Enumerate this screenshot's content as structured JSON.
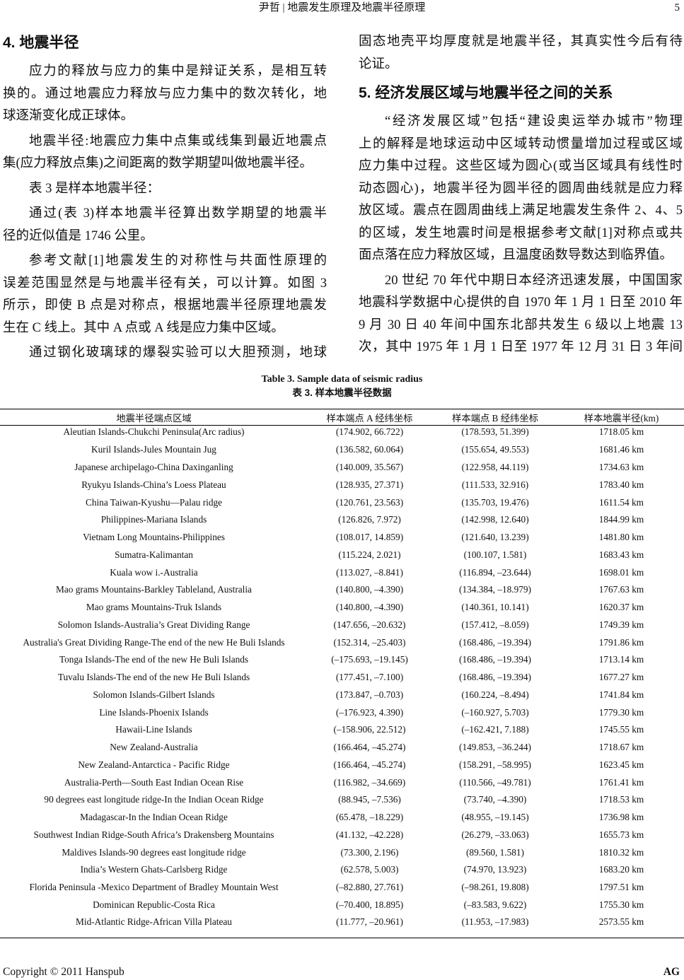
{
  "header": {
    "title": "尹哲 | 地震发生原理及地震半径原理",
    "page_number": "5"
  },
  "left": {
    "heading": "4. 地震半径",
    "paragraphs": [
      {
        "indent": true,
        "lines": [
          "应力的释放与应力的集中是辩证关系，是相互转",
          "换的。通过地震应力释放与应力集中的数次转化，地",
          "球逐渐变化成正球体。"
        ]
      },
      {
        "indent": true,
        "lines": [
          "地震半径:地震应力集中点集或线集到最近地震点",
          "集(应力释放点集)之间距离的数学期望叫做地震半径。"
        ]
      },
      {
        "indent": true,
        "lines": [
          "表 3 是样本地震半径："
        ]
      },
      {
        "indent": true,
        "lines": [
          "通过(表  3)样本地震半径算出数学期望的地震半",
          "径的近似值是 1746 公里。"
        ]
      },
      {
        "indent": true,
        "lines": [
          "参考文献[1]地震发生的对称性与共面性原理的",
          "误差范围显然是与地震半径有关，可以计算。如图 3",
          "所示，即使 B 点是对称点，根据地震半径原理地震发",
          "生在 C 线上。其中 A 点或 A 线是应力集中区域。"
        ]
      },
      {
        "indent": true,
        "continues": true,
        "lines": [
          "通过钢化玻璃球的爆裂实验可以大胆预测，地球"
        ]
      }
    ]
  },
  "right": {
    "lead": {
      "indent": false,
      "lines": [
        "固态地壳平均厚度就是地震半径，其真实性今后有待",
        "论证。"
      ]
    },
    "heading": "5. 经济发展区域与地震半径之间的关系",
    "paragraphs": [
      {
        "indent": true,
        "lines": [
          "“经济发展区域”包括“建设奥运举办城市”物理",
          "上的解释是地球运动中区域转动惯量增加过程或区域",
          "应力集中过程。这些区域为圆心(或当区域具有线性时",
          "动态圆心)，地震半径为圆半径的圆周曲线就是应力释",
          "放区域。震点在圆周曲线上满足地震发生条件 2、4、5",
          "的区域，发生地震时间是根据参考文献[1]对称点或共",
          "面点落在应力释放区域，且温度函数导数达到临界值。"
        ]
      },
      {
        "indent": true,
        "continues": true,
        "lines": [
          "20 世纪 70 年代中期日本经济迅速发展，中国国家",
          "地震科学数据中心提供的自 1970 年 1 月 1 日至 2010 年",
          "9 月 30 日 40 年间中国东北部共发生 6 级以上地震 13",
          "次，其中 1975 年 1 月 1 日至 1977 年 12 月 31 日 3 年间"
        ]
      }
    ]
  },
  "table": {
    "caption_en": "Table 3. Sample data of seismic radius",
    "caption_zh": "表 3.  样本地震半径数据",
    "columns": [
      "地震半径端点区域",
      "样本端点 A 经纬坐标",
      "样本端点 B 经纬坐标",
      "样本地震半径(km)"
    ],
    "rows": [
      [
        "Aleutian Islands-Chukchi Peninsula(Arc radius)",
        "(174.902, 66.722)",
        "(178.593, 51.399)",
        "1718.05 km"
      ],
      [
        "Kuril Islands-Jules Mountain Jug",
        "(136.582, 60.064)",
        "(155.654, 49.553)",
        "1681.46 km"
      ],
      [
        "Japanese archipelago-China Daxinganling",
        "(140.009, 35.567)",
        "(122.958, 44.119)",
        "1734.63 km"
      ],
      [
        "Ryukyu Islands-China’s Loess Plateau",
        "(128.935, 27.371)",
        "(111.533, 32.916)",
        "1783.40 km"
      ],
      [
        "China Taiwan-Kyushu—Palau ridge",
        "(120.761, 23.563)",
        "(135.703, 19.476)",
        "1611.54 km"
      ],
      [
        "Philippines-Mariana Islands",
        "(126.826, 7.972)",
        "(142.998, 12.640)",
        "1844.99 km"
      ],
      [
        "Vietnam Long Mountains-Philippines",
        "(108.017, 14.859)",
        "(121.640, 13.239)",
        "1481.80 km"
      ],
      [
        "Sumatra-Kalimantan",
        "(115.224, 2.021)",
        "(100.107, 1.581)",
        "1683.43 km"
      ],
      [
        "Kuala wow i.-Australia",
        "(113.027, –8.841)",
        "(116.894, –23.644)",
        "1698.01 km"
      ],
      [
        "Mao grams Mountains-Barkley Tableland, Australia",
        "(140.800, –4.390)",
        "(134.384, –18.979)",
        "1767.63 km"
      ],
      [
        "Mao grams Mountains-Truk Islands",
        "(140.800, –4.390)",
        "(140.361, 10.141)",
        "1620.37 km"
      ],
      [
        "Solomon Islands-Australia’s Great Dividing Range",
        "(147.656, –20.632)",
        "(157.412, –8.059)",
        "1749.39 km"
      ],
      [
        "Australia's Great Dividing Range-The end of the new He Buli Islands",
        "(152.314, –25.403)",
        "(168.486, –19.394)",
        "1791.86 km"
      ],
      [
        "Tonga Islands-The end of the new He Buli Islands",
        "(–175.693, –19.145)",
        "(168.486, –19.394)",
        "1713.14 km"
      ],
      [
        "Tuvalu Islands-The end of the new He Buli Islands",
        "(177.451, –7.100)",
        "(168.486, –19.394)",
        "1677.27 km"
      ],
      [
        "Solomon Islands-Gilbert Islands",
        "(173.847, –0.703)",
        "(160.224, –8.494)",
        "1741.84 km"
      ],
      [
        "Line Islands-Phoenix Islands",
        "(–176.923, 4.390)",
        "(–160.927, 5.703)",
        "1779.30 km"
      ],
      [
        "Hawaii-Line Islands",
        "(–158.906, 22.512)",
        "(–162.421, 7.188)",
        "1745.55 km"
      ],
      [
        "New Zealand-Australia",
        "(166.464, –45.274)",
        "(149.853, –36.244)",
        "1718.67 km"
      ],
      [
        "New Zealand-Antarctica - Pacific Ridge",
        "(166.464, –45.274)",
        "(158.291, –58.995)",
        "1623.45 km"
      ],
      [
        "Australia-Perth—South East Indian Ocean Rise",
        "(116.982, –34.669)",
        "(110.566, –49.781)",
        "1761.41 km"
      ],
      [
        "90 degrees east longitude ridge-In the Indian Ocean Ridge",
        "(88.945, –7.536)",
        "(73.740, –4.390)",
        "1718.53 km"
      ],
      [
        "Madagascar-In the Indian Ocean Ridge",
        "(65.478, –18.229)",
        "(48.955, –19.145)",
        "1736.98 km"
      ],
      [
        "Southwest Indian Ridge-South Africa’s Drakensberg Mountains",
        "(41.132, –42.228)",
        "(26.279, –33.063)",
        "1655.73 km"
      ],
      [
        "Maldives Islands-90 degrees east longitude ridge",
        "(73.300, 2.196)",
        "(89.560, 1.581)",
        "1810.32 km"
      ],
      [
        "India’s Western Ghats-Carlsberg Ridge",
        "(62.578, 5.003)",
        "(74.970, 13.923)",
        "1683.20 km"
      ],
      [
        "Florida Peninsula -Mexico Department of Bradley Mountain West",
        "(–82.880, 27.761)",
        "(–98.261, 19.808)",
        "1797.51 km"
      ],
      [
        "Dominican Republic-Costa Rica",
        "(–70.400, 18.895)",
        "(–83.583, 9.622)",
        "1755.30 km"
      ],
      [
        "Mid-Atlantic Ridge-African Villa Plateau",
        "(11.777, –20.961)",
        "(11.953, –17.983)",
        "2573.55 km"
      ]
    ]
  },
  "footer": {
    "copyright": "Copyright © 2011 Hanspub",
    "journal": "AG"
  }
}
